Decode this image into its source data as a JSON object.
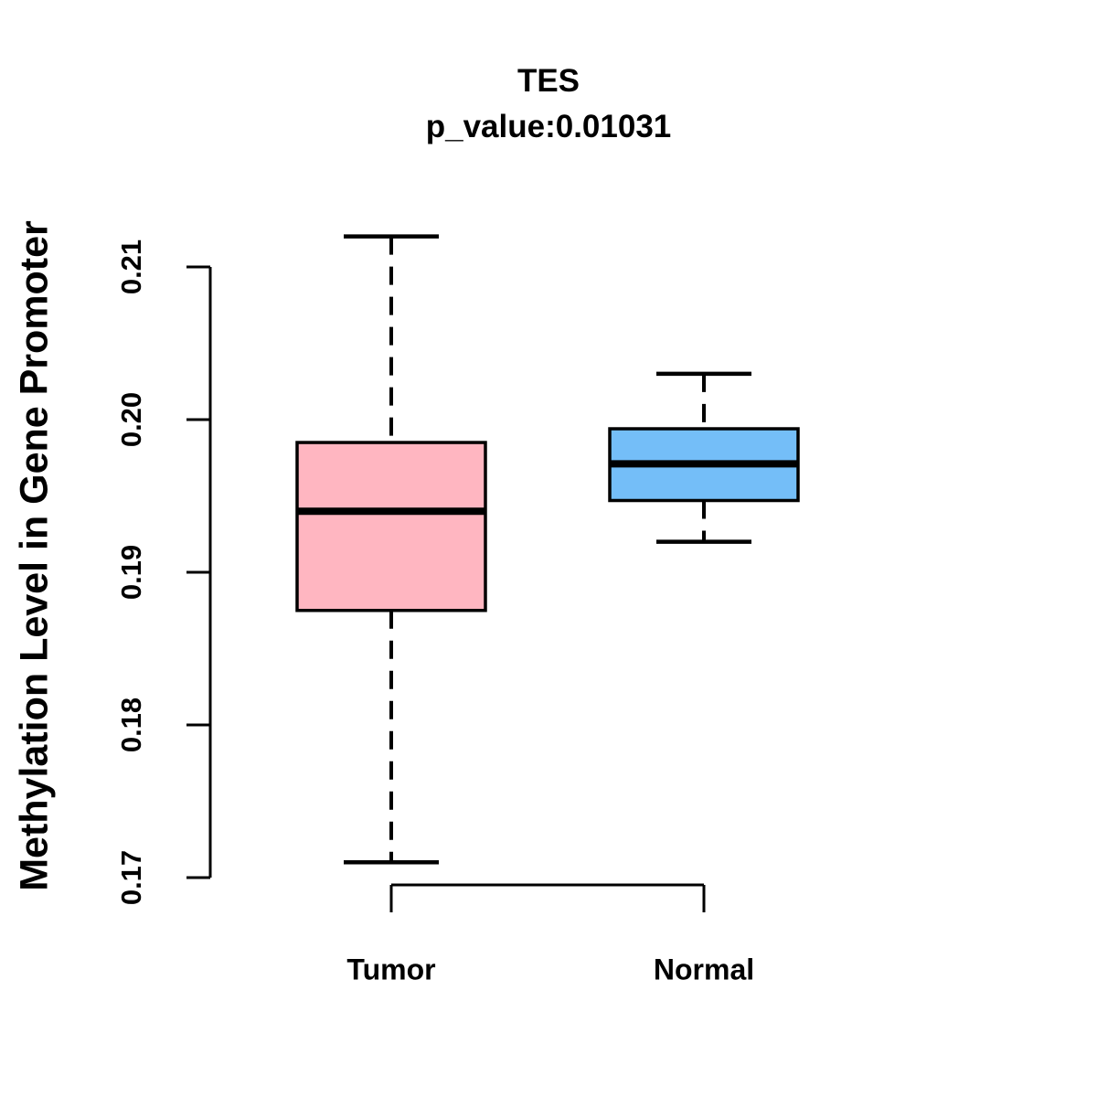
{
  "chart_data": {
    "type": "boxplot",
    "title": "TES",
    "subtitle": "p_value:0.01031",
    "ylabel": "Methylation Level in Gene Promoter",
    "xlabel": "",
    "categories": [
      "Tumor",
      "Normal"
    ],
    "ytick_labels": [
      "0.17",
      "0.18",
      "0.19",
      "0.20",
      "0.21"
    ],
    "yticks": [
      0.17,
      0.18,
      0.19,
      0.2,
      0.21
    ],
    "ylim": [
      0.17,
      0.212
    ],
    "grid": false,
    "legend": "none",
    "series": [
      {
        "name": "Tumor",
        "color": "#FFB6C1",
        "whisker_low": 0.171,
        "q1": 0.1875,
        "median": 0.194,
        "q3": 0.1985,
        "whisker_high": 0.212
      },
      {
        "name": "Normal",
        "color": "#74BEF8",
        "whisker_low": 0.192,
        "q1": 0.1947,
        "median": 0.1971,
        "q3": 0.1994,
        "whisker_high": 0.203
      }
    ],
    "colors": {
      "tumor_box": "#FFB6C1",
      "normal_box": "#74BEF8",
      "line": "#000000"
    }
  }
}
